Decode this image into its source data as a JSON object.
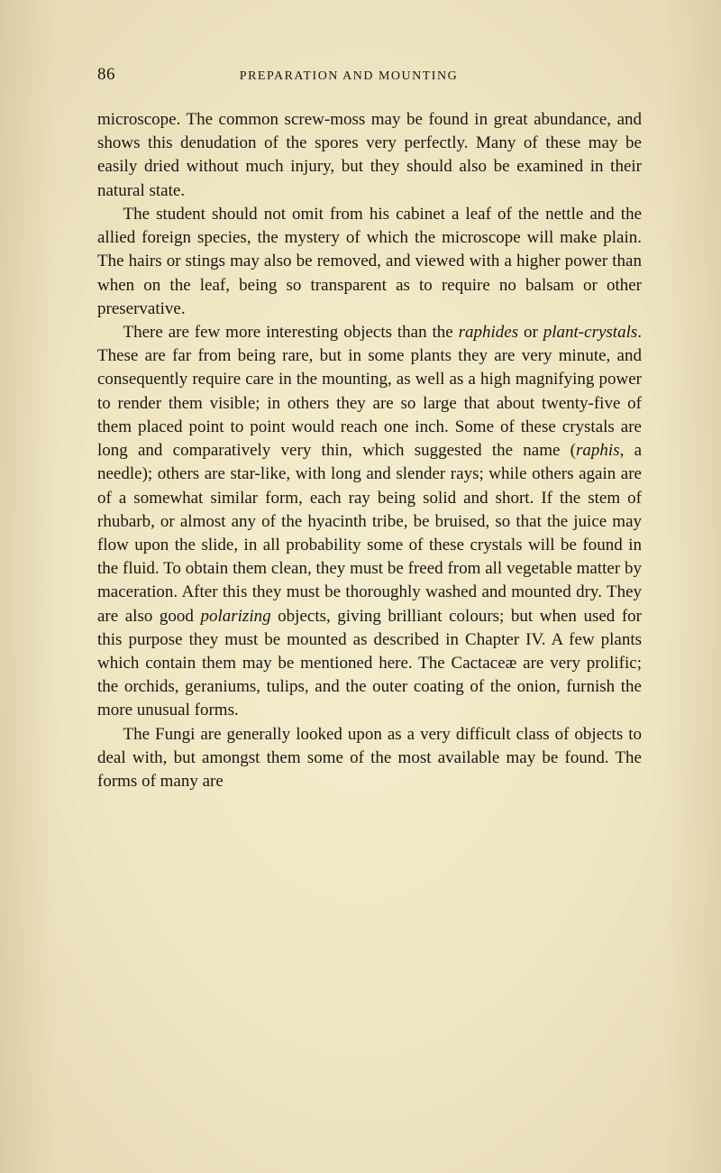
{
  "page": {
    "number": "86",
    "running_head": "PREPARATION AND MOUNTING"
  },
  "paragraphs": [
    "microscope. The common screw-moss may be found in great abundance, and shows this denudation of the spores very perfectly. Many of these may be easily dried without much injury, but they should also be examined in their natural state.",
    "The student should not omit from his cabinet a leaf of the nettle and the allied foreign species, the mystery of which the microscope will make plain. The hairs or stings may also be removed, and viewed with a higher power than when on the leaf, being so transparent as to require no balsam or other preservative.",
    "There are few more interesting objects than the <i>raphides</i> or <i>plant-crystals</i>. These are far from being rare, but in some plants they are very minute, and consequently require care in the mounting, as well as a high magnifying power to render them visible; in others they are so large that about twenty-five of them placed point to point would reach one inch. Some of these crystals are long and comparatively very thin, which suggested the name (<i>raphis</i>, a needle); others are star-like, with long and slender rays; while others again are of a somewhat similar form, each ray being solid and short. If the stem of rhubarb, or almost any of the hyacinth tribe, be bruised, so that the juice may flow upon the slide, in all probability some of these crystals will be found in the fluid. To obtain them clean, they must be freed from all vegetable matter by maceration. After this they must be thoroughly washed and mounted dry. They are also good <i>polarizing</i> objects, giving brilliant colours; but when used for this purpose they must be mounted as described in Chapter IV. A few plants which contain them may be mentioned here. The Cactaceæ are very prolific; the orchids, geraniums, tulips, and the outer coating of the onion, furnish the more unusual forms.",
    "The Fungi are generally looked upon as a very difficult class of objects to deal with, but amongst them some of the most available may be found. The forms of many are"
  ]
}
